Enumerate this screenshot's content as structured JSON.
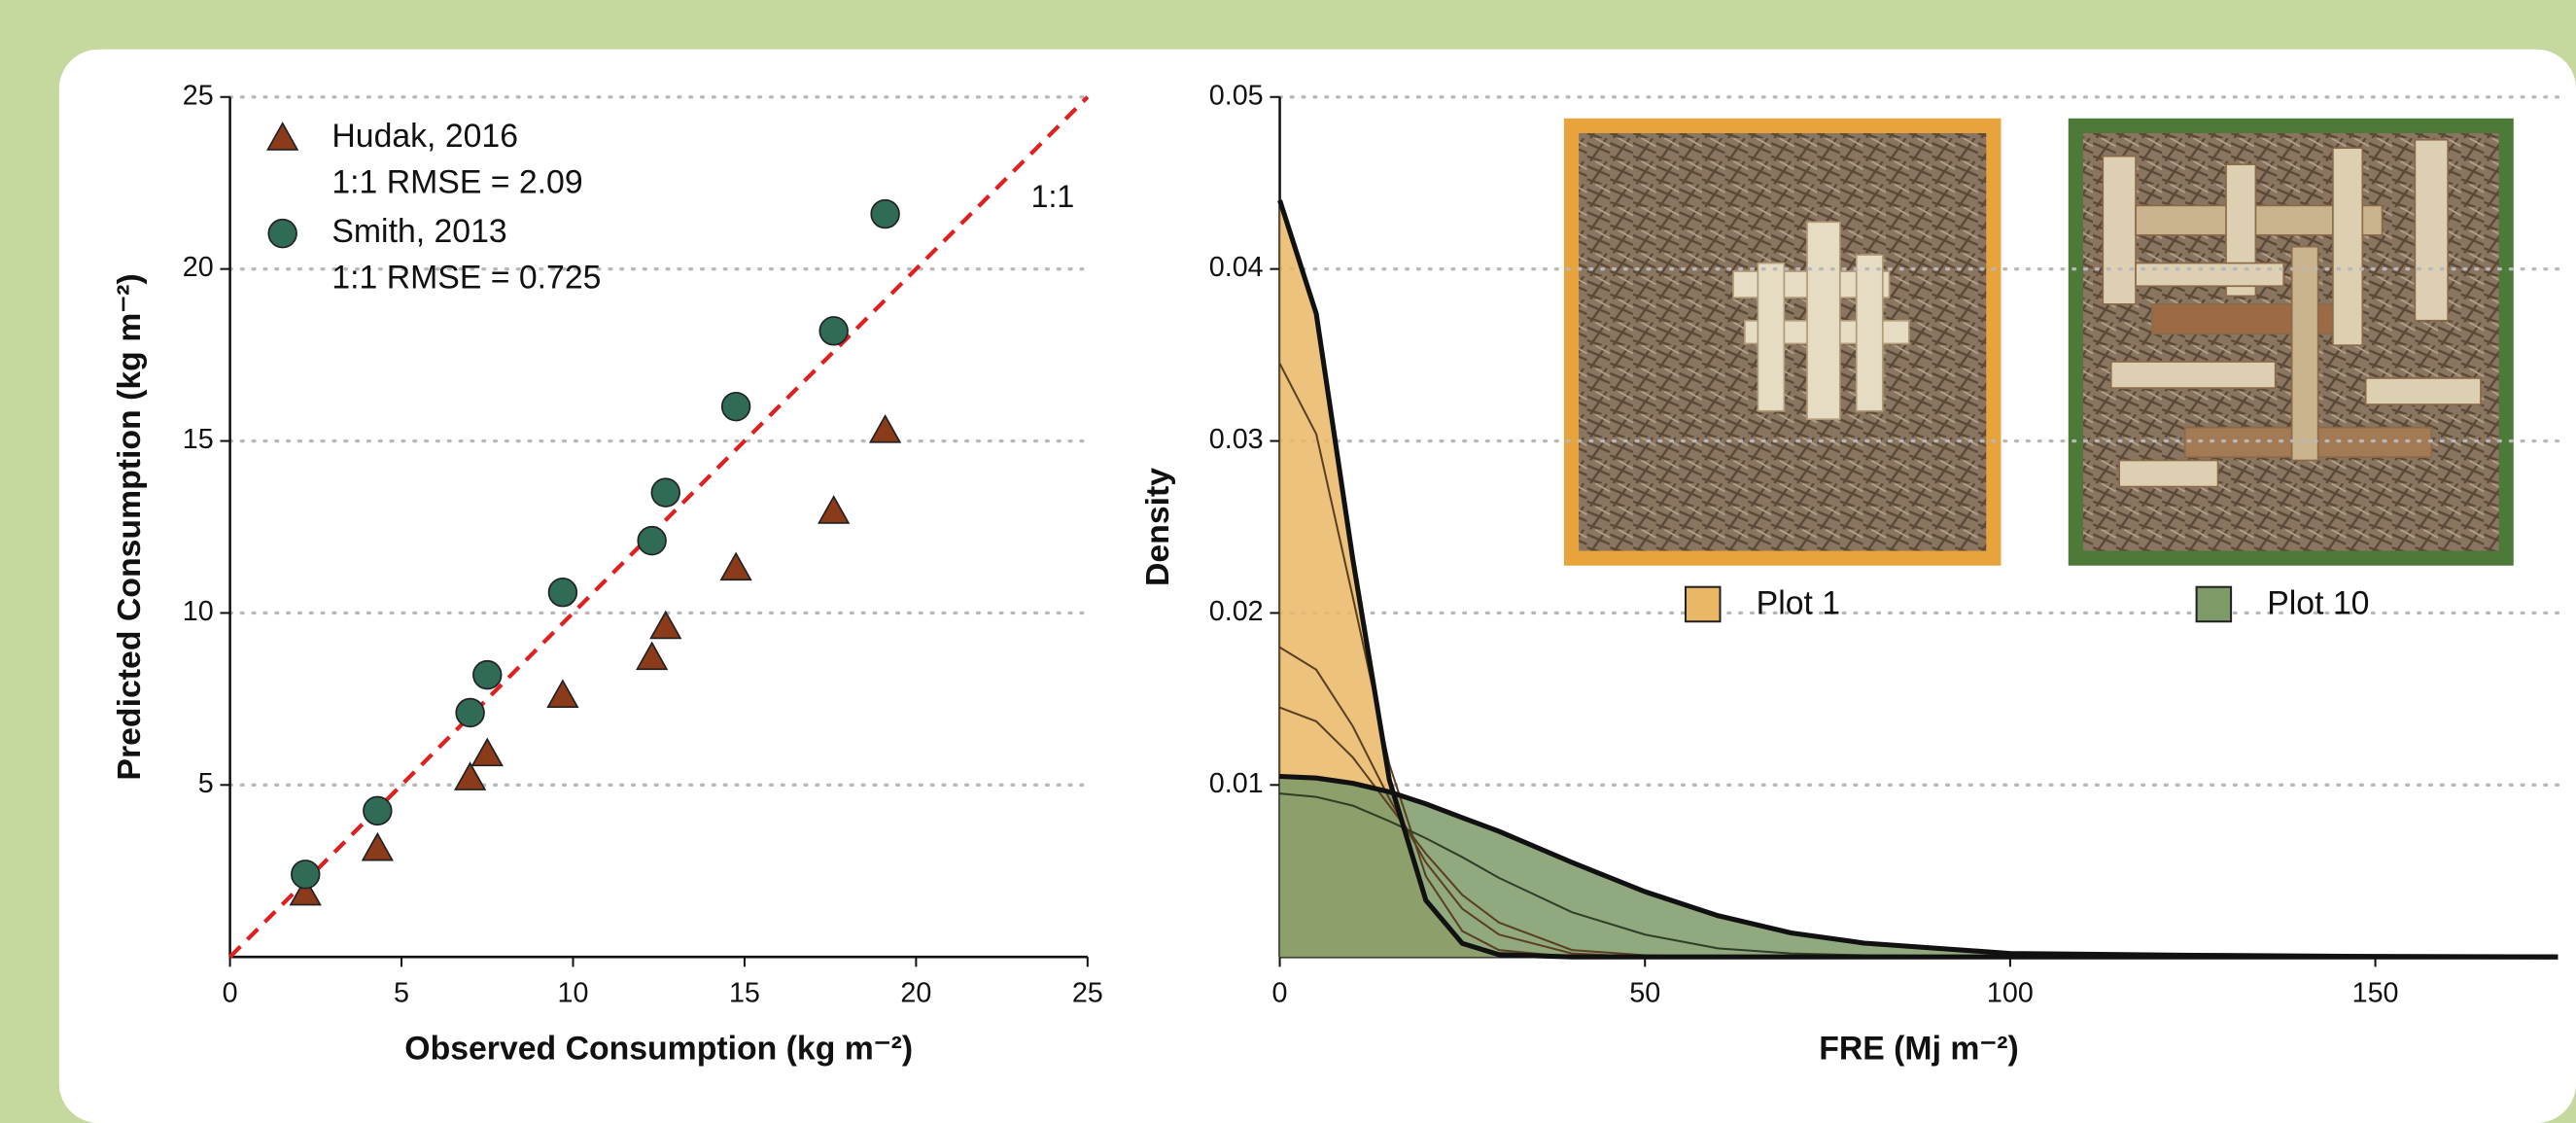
{
  "chart_data": [
    {
      "type": "scatter",
      "xlabel": "Observed Consumption (kg m⁻²)",
      "ylabel": "Predicted Consumption (kg m⁻²)",
      "xlim": [
        0,
        25
      ],
      "ylim": [
        0,
        25
      ],
      "xticks": [
        0,
        5,
        10,
        15,
        20,
        25
      ],
      "yticks": [
        5,
        10,
        15,
        20,
        25
      ],
      "grid": true,
      "reference_line": {
        "label": "1:1",
        "color": "#e02020"
      },
      "series": [
        {
          "name": "Hudak, 2016",
          "annotation": "1:1 RMSE = 2.09",
          "marker": "triangle",
          "color": "#8b3a1a",
          "text_color": "#8b4a26",
          "x": [
            2.2,
            4.3,
            7.0,
            7.5,
            9.7,
            12.3,
            12.7,
            14.75,
            17.6,
            19.1
          ],
          "values": [
            1.85,
            3.15,
            5.2,
            5.9,
            7.6,
            8.7,
            9.6,
            11.3,
            12.95,
            15.3
          ]
        },
        {
          "name": "Smith, 2013",
          "annotation": "1:1 RMSE = 0.725",
          "marker": "circle",
          "color": "#2f6b55",
          "text_color": "#3d7a5c",
          "x": [
            2.2,
            4.3,
            7.0,
            7.5,
            9.7,
            12.3,
            12.7,
            14.75,
            17.6,
            19.1
          ],
          "values": [
            2.4,
            4.25,
            7.1,
            8.2,
            10.6,
            12.1,
            13.5,
            16.0,
            18.2,
            21.6
          ]
        }
      ]
    },
    {
      "type": "area",
      "xlabel": "FRE (Mj m⁻²)",
      "ylabel": "Density",
      "xlim": [
        0,
        175
      ],
      "ylim": [
        0,
        0.05
      ],
      "xticks": [
        0,
        50,
        100,
        150
      ],
      "yticks": [
        0.01,
        0.02,
        0.03,
        0.04,
        0.05
      ],
      "grid": true,
      "x": [
        0,
        5,
        10,
        15,
        20,
        25,
        30,
        40,
        50,
        60,
        70,
        80,
        100,
        125,
        150,
        175
      ],
      "series": [
        {
          "name": "Plot 1",
          "color": "#e9b766",
          "values": [
            0.044,
            0.0374,
            0.0231,
            0.0103,
            0.0033,
            0.00078,
            0.00013,
            0,
            0,
            0,
            0,
            0,
            0,
            0,
            0,
            0
          ]
        },
        {
          "name": "Plot 10",
          "color": "#7d9a68",
          "values": [
            0.0105,
            0.0104,
            0.0101,
            0.0096,
            0.0089,
            0.0081,
            0.0073,
            0.0055,
            0.0038,
            0.0024,
            0.0014,
            0.0008,
            0.0002,
            0.0001,
            3e-05,
            0
          ]
        }
      ],
      "lines": [
        {
          "color": "#5a4020",
          "values": [
            0.0345,
            0.0304,
            0.0209,
            0.0112,
            0.0047,
            0.0015,
            0.0004,
            0,
            0,
            0,
            0,
            0,
            0,
            0,
            0,
            0
          ]
        },
        {
          "color": "#5a4020",
          "values": [
            0.018,
            0.0167,
            0.0134,
            0.0092,
            0.0055,
            0.0028,
            0.0013,
            0.0002,
            0,
            0,
            0,
            0,
            0,
            0,
            0,
            0
          ]
        },
        {
          "color": "#5a4020",
          "values": [
            0.0145,
            0.0137,
            0.0116,
            0.0088,
            0.006,
            0.0036,
            0.002,
            0.0004,
            0.0001,
            0,
            0,
            0,
            0,
            0,
            0,
            0
          ]
        },
        {
          "color": "#2e3e28",
          "values": [
            0.0095,
            0.0093,
            0.0088,
            0.0079,
            0.0069,
            0.0058,
            0.0046,
            0.0026,
            0.0013,
            0.0005,
            0.0002,
            0.0001,
            0,
            0,
            0,
            0
          ]
        }
      ]
    }
  ]
}
